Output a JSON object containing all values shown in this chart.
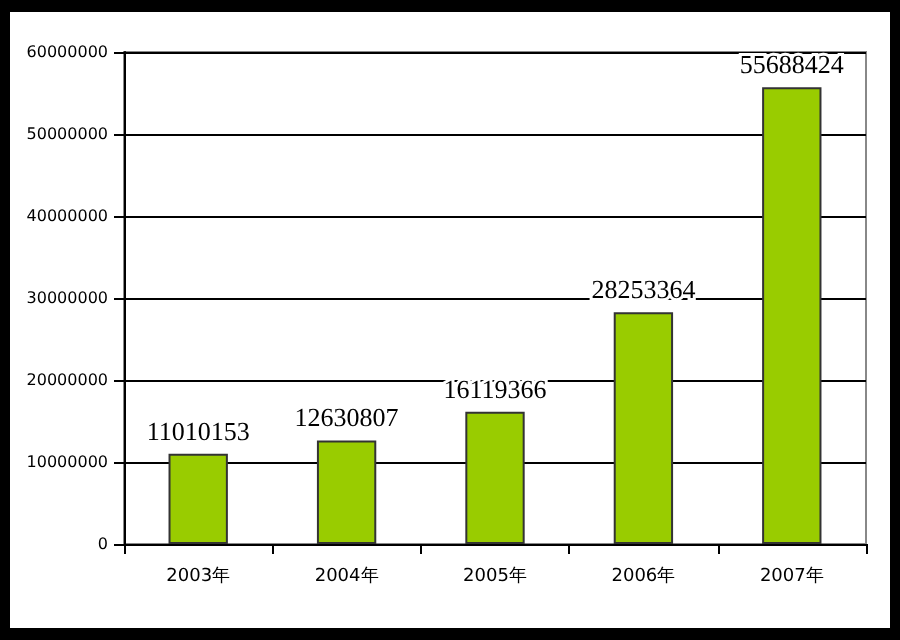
{
  "chart_data": {
    "type": "bar",
    "categories": [
      "2003年",
      "2004年",
      "2005年",
      "2006年",
      "2007年"
    ],
    "values": [
      11010153,
      12630807,
      16119366,
      28253364,
      55688424
    ],
    "color": "#99cc00",
    "data_labels": true,
    "ylim": [
      0,
      60000000
    ],
    "yticks": [
      0,
      10000000,
      20000000,
      30000000,
      40000000,
      50000000,
      60000000
    ],
    "grid": "y"
  }
}
